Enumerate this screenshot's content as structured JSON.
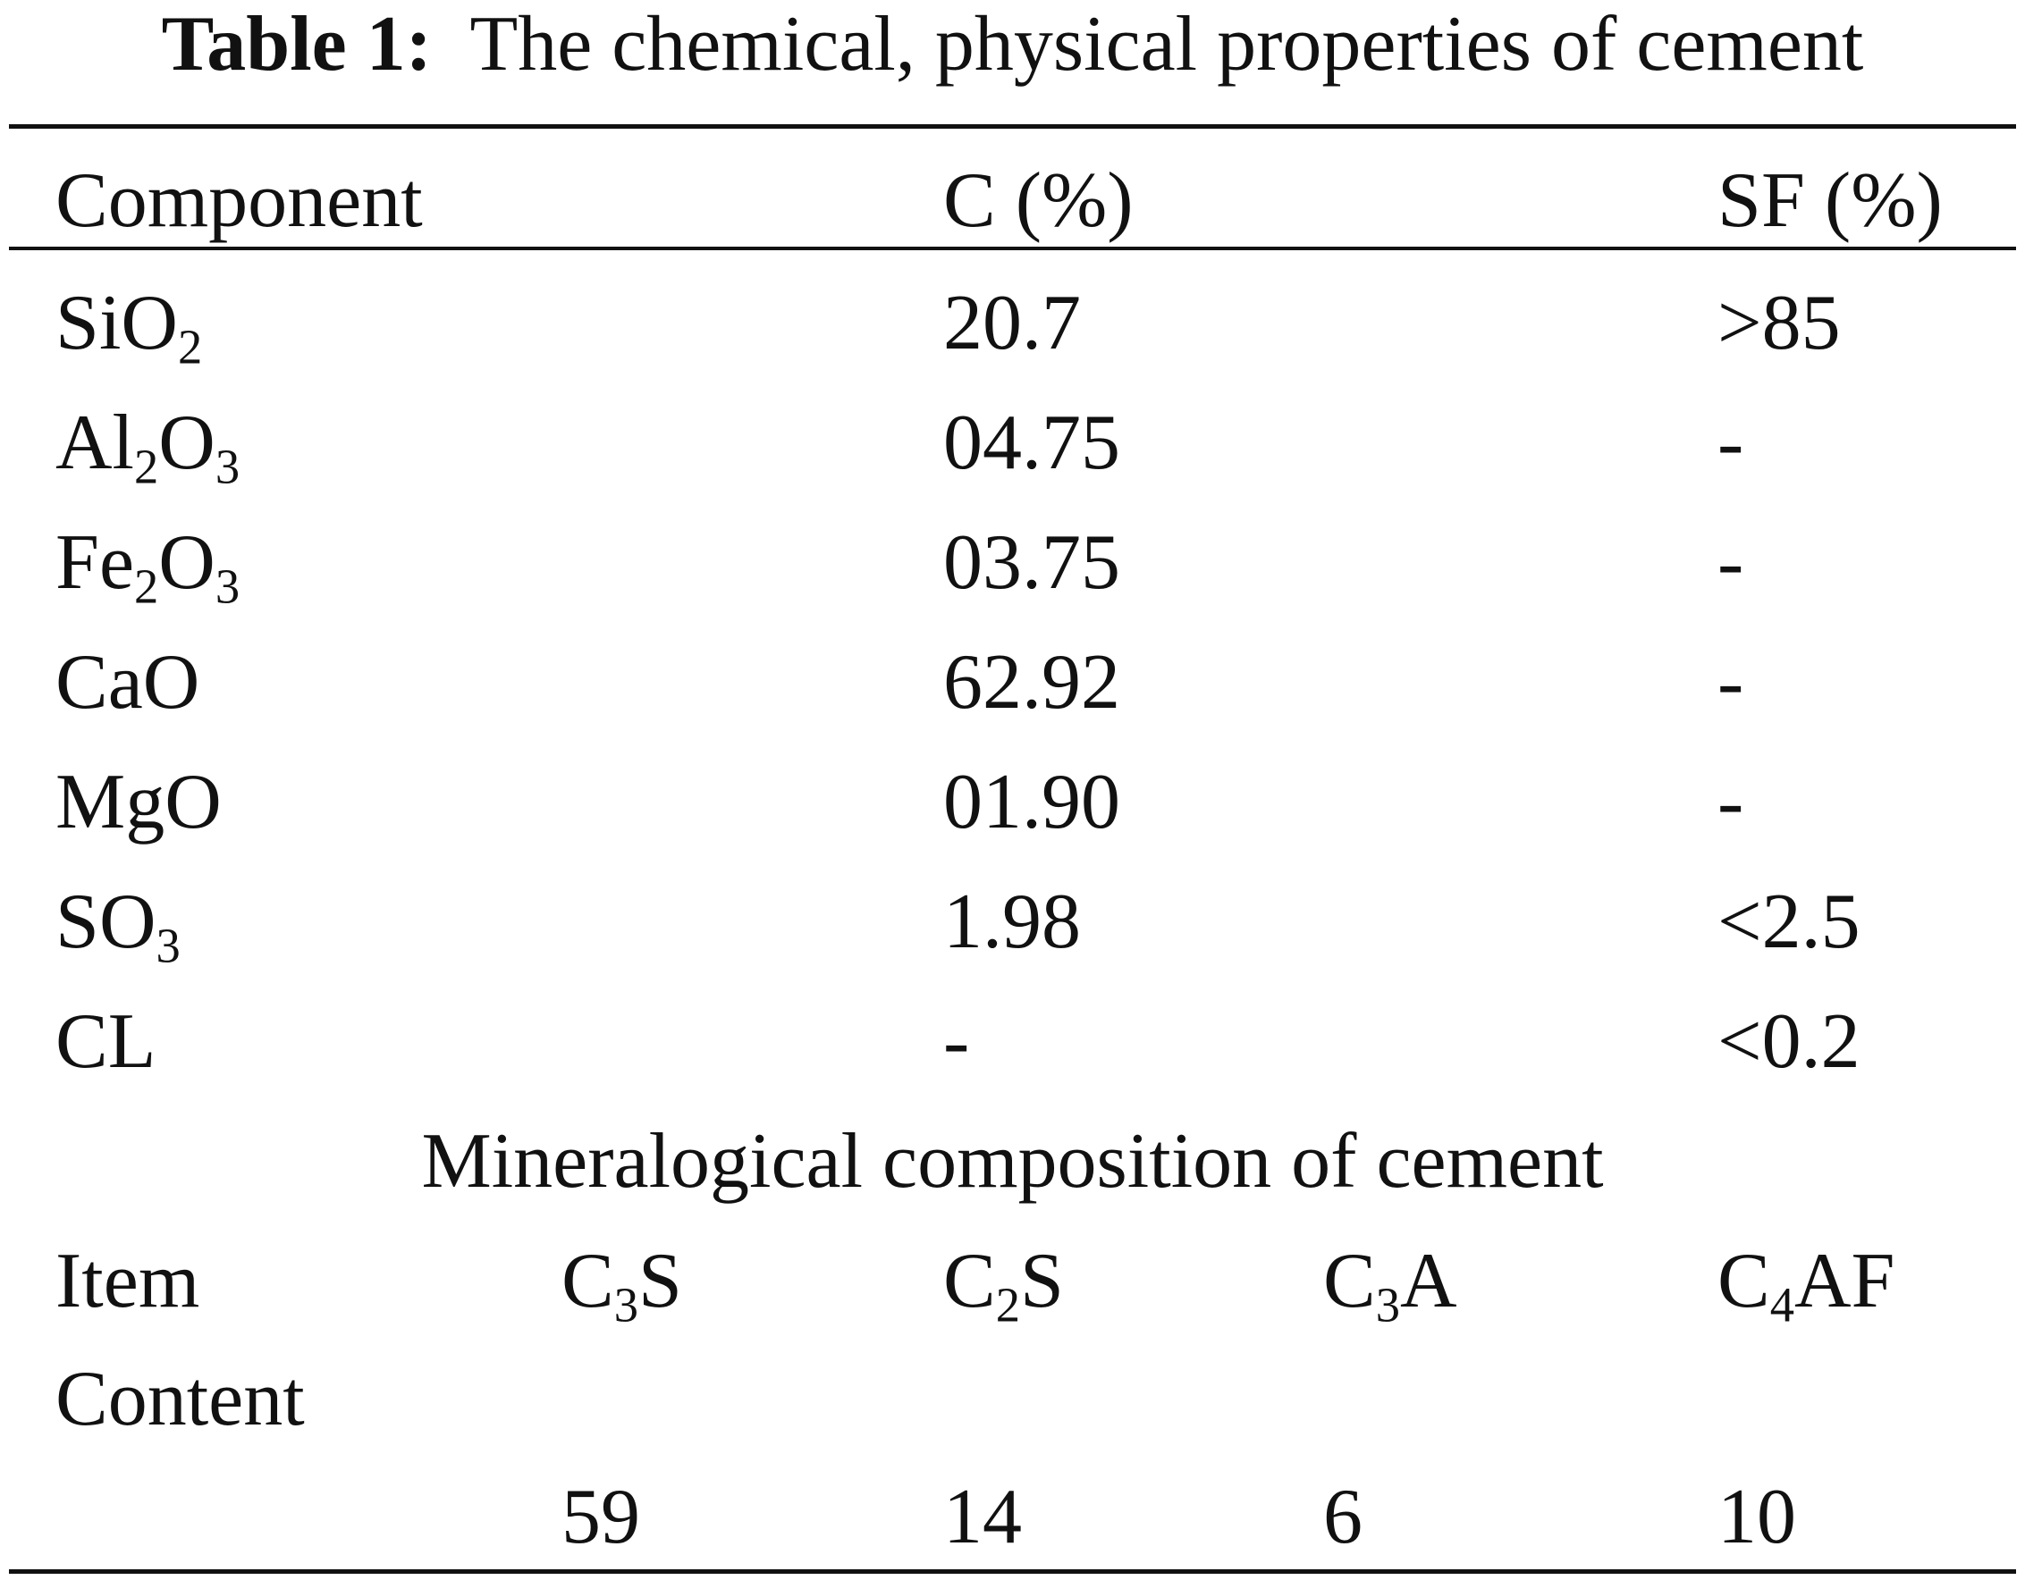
{
  "caption": {
    "label": "Table 1:",
    "text": "The chemical, physical properties of cement"
  },
  "chemical_table": {
    "headers": [
      "Component",
      "C (%)",
      "SF (%)"
    ],
    "rows": [
      {
        "component": "SiO2",
        "c": "20.7",
        "sf": ">85"
      },
      {
        "component": "Al2O3",
        "c": "04.75",
        "sf": "-"
      },
      {
        "component": "Fe2O3",
        "c": "03.75",
        "sf": "-"
      },
      {
        "component": "CaO",
        "c": "62.92",
        "sf": "-"
      },
      {
        "component": "MgO",
        "c": "01.90",
        "sf": "-"
      },
      {
        "component": "SO3",
        "c": "1.98",
        "sf": "<2.5"
      },
      {
        "component": "CL",
        "c": "-",
        "sf": "<0.2"
      }
    ]
  },
  "mineral_table": {
    "title": "Mineralogical composition of cement",
    "item_label": "Item",
    "content_label": "Content",
    "items": [
      "C3S",
      "C2S",
      "C3A",
      "C4AF"
    ],
    "values": [
      "59",
      "14",
      "6",
      "10"
    ]
  }
}
